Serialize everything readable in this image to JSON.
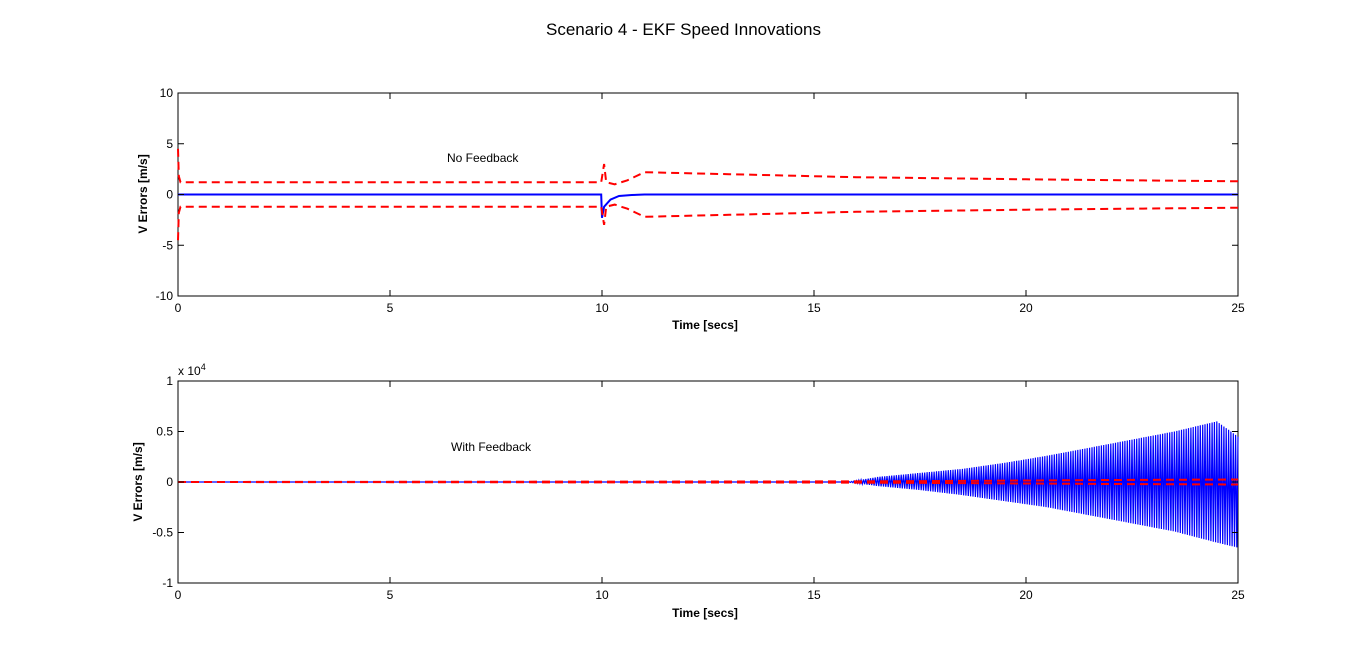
{
  "figure": {
    "title": "Scenario 4 - EKF Speed Innovations"
  },
  "colors": {
    "innovation": "#0000ff",
    "bound": "#ff0000",
    "axis": "#000000"
  },
  "chart_data": [
    {
      "type": "line",
      "title": "",
      "annotation": "No Feedback",
      "xlabel": "Time [secs]",
      "ylabel": "V Errors [m/s]",
      "xlim": [
        0,
        25
      ],
      "ylim": [
        -10,
        10
      ],
      "xticks": [
        0,
        5,
        10,
        15,
        20,
        25
      ],
      "xtick_labels": [
        "0",
        "5",
        "10",
        "15",
        "20",
        "25"
      ],
      "yticks": [
        -10,
        -5,
        0,
        5,
        10
      ],
      "ytick_labels": [
        "-10",
        "-5",
        "0",
        "5",
        "10"
      ],
      "exponent_label": "",
      "series": [
        {
          "style": "solid",
          "color": "blue",
          "x": [
            0,
            9.98,
            10.0,
            10.05,
            10.2,
            10.4,
            10.7,
            11.0,
            25
          ],
          "y": [
            0,
            0,
            -2.3,
            -1.2,
            -0.5,
            -0.15,
            -0.05,
            0,
            0
          ]
        },
        {
          "style": "dashed",
          "color": "red",
          "x": [
            0,
            0.02,
            0.06,
            9.98,
            10.05,
            10.1,
            10.3,
            10.6,
            11.0,
            13.0,
            16.0,
            20.0,
            25.0
          ],
          "y": [
            4.5,
            1.8,
            1.2,
            1.2,
            3.0,
            1.2,
            1.0,
            1.4,
            2.2,
            2.0,
            1.7,
            1.5,
            1.3
          ]
        },
        {
          "style": "dashed",
          "color": "red",
          "x": [
            0,
            0.02,
            0.06,
            9.98,
            10.05,
            10.1,
            10.3,
            10.6,
            11.0,
            13.0,
            16.0,
            20.0,
            25.0
          ],
          "y": [
            -4.5,
            -1.8,
            -1.2,
            -1.2,
            -3.0,
            -1.2,
            -1.0,
            -1.4,
            -2.2,
            -2.0,
            -1.7,
            -1.5,
            -1.3
          ]
        }
      ]
    },
    {
      "type": "line",
      "title": "",
      "annotation": "With Feedback",
      "xlabel": "Time [secs]",
      "ylabel": "V Errors [m/s]",
      "xlim": [
        0,
        25
      ],
      "ylim": [
        -10000,
        10000
      ],
      "xticks": [
        0,
        5,
        10,
        15,
        20,
        25
      ],
      "xtick_labels": [
        "0",
        "5",
        "10",
        "15",
        "20",
        "25"
      ],
      "yticks": [
        -10000,
        -5000,
        0,
        5000,
        10000
      ],
      "ytick_labels": [
        "-1",
        "-0.5",
        "0",
        "0.5",
        "1"
      ],
      "exponent_label": "x 10",
      "exponent_power": "4",
      "series": [
        {
          "style": "solid",
          "color": "blue",
          "kind": "envelope",
          "x": [
            0,
            15.8,
            16.5,
            17.5,
            18.5,
            19.5,
            20.5,
            21.5,
            22.5,
            23.5,
            24.5,
            25.0
          ],
          "y_upper": [
            0,
            0,
            500,
            900,
            1300,
            1900,
            2600,
            3400,
            4200,
            5000,
            6000,
            4500
          ],
          "y_lower": [
            0,
            0,
            -400,
            -800,
            -1300,
            -1900,
            -2500,
            -3300,
            -4100,
            -4900,
            -6000,
            -6500
          ]
        },
        {
          "style": "dashed",
          "color": "red",
          "x": [
            0,
            16,
            18,
            20,
            22,
            25
          ],
          "y": [
            0,
            60,
            100,
            150,
            200,
            250
          ]
        },
        {
          "style": "dashed",
          "color": "red",
          "x": [
            0,
            16,
            18,
            20,
            22,
            25
          ],
          "y": [
            0,
            -60,
            -100,
            -150,
            -200,
            -250
          ]
        }
      ]
    }
  ]
}
